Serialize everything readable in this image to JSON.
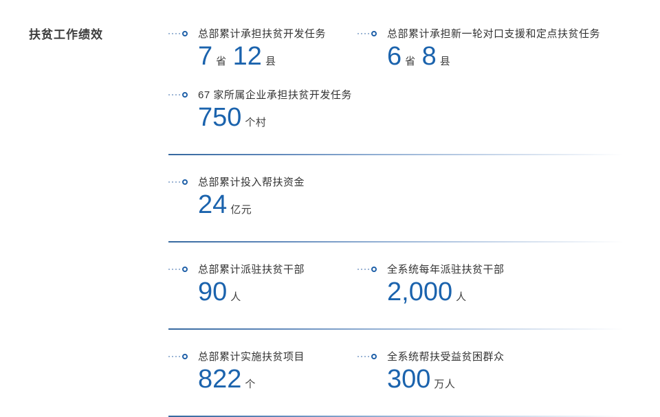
{
  "title": "扶贫工作绩效",
  "colors": {
    "number_blue": "#1b63ad",
    "label_dark": "#333333",
    "divider_blue": "#35689f"
  },
  "icons": {
    "bullet": "dotted-trail-ring-icon"
  },
  "rows": [
    {
      "cols": [
        {
          "label": "总部累计承担扶贫开发任务",
          "parts": [
            {
              "text": "7",
              "kind": "num"
            },
            {
              "text": "省",
              "kind": "unit"
            },
            {
              "text": "12",
              "kind": "num"
            },
            {
              "text": "县",
              "kind": "unit"
            }
          ]
        },
        {
          "label": "总部累计承担新一轮对口支援和定点扶贫任务",
          "parts": [
            {
              "text": "6",
              "kind": "num"
            },
            {
              "text": "省",
              "kind": "unit"
            },
            {
              "text": "8",
              "kind": "num"
            },
            {
              "text": "县",
              "kind": "unit"
            }
          ]
        }
      ]
    },
    {
      "cols": [
        {
          "label": "67 家所属企业承担扶贫开发任务",
          "parts": [
            {
              "text": "750",
              "kind": "num"
            },
            {
              "text": "个村",
              "kind": "unit"
            }
          ]
        }
      ]
    },
    {
      "cols": [
        {
          "label": "总部累计投入帮扶资金",
          "parts": [
            {
              "text": "24",
              "kind": "num"
            },
            {
              "text": "亿元",
              "kind": "unit"
            }
          ]
        }
      ]
    },
    {
      "cols": [
        {
          "label": "总部累计派驻扶贫干部",
          "parts": [
            {
              "text": "90",
              "kind": "num"
            },
            {
              "text": "人",
              "kind": "unit"
            }
          ]
        },
        {
          "label": "全系统每年派驻扶贫干部",
          "parts": [
            {
              "text": "2,000",
              "kind": "num"
            },
            {
              "text": "人",
              "kind": "unit"
            }
          ]
        }
      ]
    },
    {
      "cols": [
        {
          "label": "总部累计实施扶贫项目",
          "parts": [
            {
              "text": "822",
              "kind": "num"
            },
            {
              "text": "个",
              "kind": "unit"
            }
          ]
        },
        {
          "label": "全系统帮扶受益贫困群众",
          "parts": [
            {
              "text": "300",
              "kind": "num"
            },
            {
              "text": "万人",
              "kind": "unit"
            }
          ]
        }
      ]
    }
  ]
}
